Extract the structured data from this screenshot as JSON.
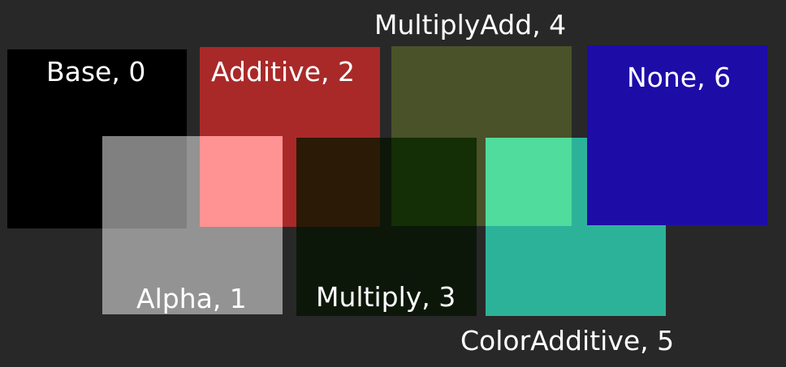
{
  "background_color": "#282828",
  "swatches": [
    {
      "label": "Base, 0",
      "mode": "Base",
      "value": 0
    },
    {
      "label": "Alpha, 1",
      "mode": "Alpha",
      "value": 1
    },
    {
      "label": "Additive, 2",
      "mode": "Additive",
      "value": 2
    },
    {
      "label": "Multiply, 3",
      "mode": "Multiply",
      "value": 3
    },
    {
      "label": "MultiplyAdd, 4",
      "mode": "MultiplyAdd",
      "value": 4
    },
    {
      "label": "ColorAdditive, 5",
      "mode": "ColorAdditive",
      "value": 5
    },
    {
      "label": "None, 6",
      "mode": "None",
      "value": 6
    }
  ],
  "colors": {
    "base": "#000000",
    "alpha_overlay": "#939393",
    "alpha_overlap": "#808080",
    "additive": "#a92929",
    "additive_overlap": "#ff9393",
    "multiply": "#0c170a",
    "multiply_overlap_additive": "#2a1a06",
    "multiply_overlap_multiplyadd": "#142e05",
    "multiplyadd": "#4a522a",
    "coloradditive": "#2db29a",
    "coloradditive_overlap": "#50dc9c",
    "none": "#1e0ca7"
  }
}
